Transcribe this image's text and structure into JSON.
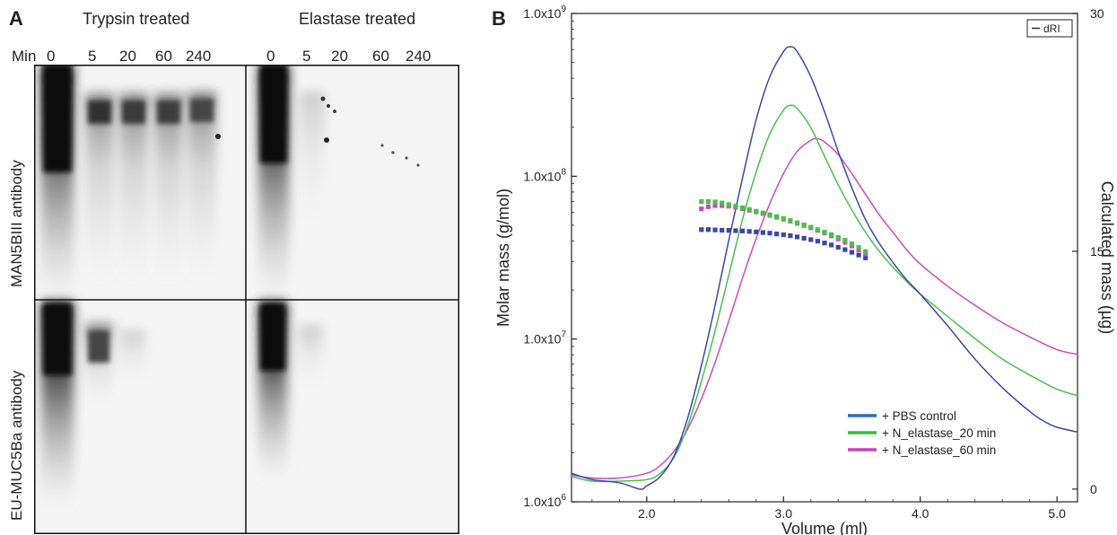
{
  "panel_a": {
    "letter": "A",
    "headers": [
      "Trypsin treated",
      "Elastase treated"
    ],
    "min_label": "Min",
    "lanes_left": [
      "0",
      "5",
      "20",
      "60",
      "240"
    ],
    "lanes_right": [
      "0",
      "5",
      "20",
      "60",
      "240"
    ],
    "antibodies": [
      "MAN5BIII antibody",
      "EU-MUC5Ba antibody"
    ]
  },
  "panel_b": {
    "letter": "B"
  },
  "chart_data": {
    "type": "line",
    "title": "",
    "xlabel": "Volume (ml)",
    "ylabel": "Molar mass (g/mol)",
    "ylabel_right": "Calculated mass (µg)",
    "xlim": [
      1.45,
      5.15
    ],
    "ylim": [
      1000000,
      1000000000
    ],
    "yscale": "log",
    "ylim_right": [
      -0.8,
      30
    ],
    "x_ticks": [
      "2.0",
      "3.0",
      "4.0",
      "5.0"
    ],
    "x_tick_values": [
      2.0,
      3.0,
      4.0,
      5.0
    ],
    "y_ticks": [
      "1.0x10^6",
      "1.0x10^7",
      "1.0x10^8",
      "1.0x10^9"
    ],
    "y_tick_values": [
      1000000,
      10000000,
      100000000,
      1000000000
    ],
    "y_right_ticks": [
      "0",
      "15",
      "30"
    ],
    "y_right_tick_values": [
      0,
      15,
      30
    ],
    "inset_legend": "dRI",
    "legend_position": "bottom-right",
    "series": [
      {
        "name": "+ PBS control",
        "color": "#3d47a8",
        "legend_color": "#2a6db5",
        "curve": {
          "x": [
            1.45,
            1.6,
            1.8,
            1.95,
            2.0,
            2.1,
            2.2,
            2.3,
            2.4,
            2.5,
            2.6,
            2.7,
            2.8,
            2.9,
            3.0,
            3.05,
            3.1,
            3.2,
            3.3,
            3.4,
            3.5,
            3.6,
            3.7,
            3.8,
            3.9,
            4.0,
            4.2,
            4.4,
            4.6,
            4.8,
            4.9,
            5.0,
            5.15
          ],
          "y": [
            1.0,
            0.6,
            0.4,
            0.0,
            0.2,
            0.8,
            2.1,
            4.5,
            7.8,
            11.6,
            15.7,
            19.6,
            23.3,
            26.0,
            27.6,
            27.9,
            27.6,
            26.0,
            23.8,
            21.3,
            19.0,
            17.0,
            15.5,
            14.3,
            13.2,
            12.3,
            10.3,
            8.2,
            6.4,
            4.9,
            4.3,
            3.9,
            3.6
          ]
        },
        "mass": {
          "x": [
            2.4,
            2.45,
            2.5,
            2.55,
            2.6,
            2.65,
            2.7,
            2.75,
            2.8,
            2.85,
            2.9,
            2.95,
            3.0,
            3.05,
            3.1,
            3.15,
            3.2,
            3.25,
            3.3,
            3.35,
            3.4,
            3.45,
            3.5,
            3.55,
            3.6
          ],
          "y": [
            47000000,
            47000000,
            46800000,
            46600000,
            46500000,
            46300000,
            46100000,
            45800000,
            45500000,
            45100000,
            44700000,
            44200000,
            43700000,
            43100000,
            42400000,
            41600000,
            40800000,
            39900000,
            38900000,
            37800000,
            36600000,
            35400000,
            34100000,
            32800000,
            31500000
          ]
        }
      },
      {
        "name": "+ N_elastase_20 min",
        "color": "#4cbf4c",
        "legend_color": "#3fb83f",
        "curve": {
          "x": [
            1.45,
            1.6,
            1.8,
            2.0,
            2.1,
            2.2,
            2.3,
            2.4,
            2.5,
            2.6,
            2.7,
            2.8,
            2.9,
            3.0,
            3.05,
            3.1,
            3.2,
            3.3,
            3.4,
            3.5,
            3.6,
            3.7,
            3.8,
            3.9,
            4.0,
            4.2,
            4.4,
            4.6,
            4.8,
            5.0,
            5.15
          ],
          "y": [
            0.8,
            0.5,
            0.5,
            0.6,
            1.0,
            2.0,
            4.0,
            6.8,
            10.0,
            13.5,
            17.0,
            20.0,
            22.4,
            23.9,
            24.2,
            24.0,
            22.8,
            21.0,
            19.2,
            17.6,
            16.2,
            15.0,
            14.0,
            13.1,
            12.3,
            10.9,
            9.5,
            8.2,
            7.2,
            6.3,
            5.9
          ]
        },
        "mass": {
          "x": [
            2.4,
            2.45,
            2.5,
            2.55,
            2.6,
            2.65,
            2.7,
            2.75,
            2.8,
            2.85,
            2.9,
            2.95,
            3.0,
            3.05,
            3.1,
            3.15,
            3.2,
            3.25,
            3.3,
            3.35,
            3.4,
            3.45,
            3.5,
            3.55,
            3.6
          ],
          "y": [
            70000000,
            70000000,
            69500000,
            68500000,
            67000000,
            65500000,
            64000000,
            62500000,
            61000000,
            59500000,
            58000000,
            56500000,
            55000000,
            53400000,
            51800000,
            50200000,
            48600000,
            47000000,
            45400000,
            43800000,
            42100000,
            40400000,
            38500000,
            36500000,
            34500000
          ]
        }
      },
      {
        "name": "+ N_elastase_60 min",
        "color": "#c74cc2",
        "legend_color": "#c93ec2",
        "curve": {
          "x": [
            1.45,
            1.6,
            1.8,
            2.0,
            2.1,
            2.2,
            2.3,
            2.4,
            2.5,
            2.6,
            2.7,
            2.8,
            2.9,
            3.0,
            3.1,
            3.2,
            3.25,
            3.3,
            3.4,
            3.5,
            3.6,
            3.7,
            3.8,
            3.9,
            4.0,
            4.2,
            4.4,
            4.6,
            4.8,
            5.0,
            5.15
          ],
          "y": [
            0.9,
            0.7,
            0.7,
            1.0,
            1.5,
            2.4,
            3.8,
            5.7,
            8.0,
            10.6,
            13.3,
            15.8,
            18.0,
            19.9,
            21.3,
            22.0,
            22.1,
            21.9,
            21.1,
            19.9,
            18.6,
            17.3,
            16.2,
            15.1,
            14.2,
            12.8,
            11.6,
            10.5,
            9.6,
            8.8,
            8.5
          ]
        },
        "mass": {
          "x": [
            2.4,
            2.45,
            2.5,
            2.55,
            2.6,
            2.65,
            2.7,
            2.75,
            2.8,
            2.85,
            2.9,
            2.95,
            3.0,
            3.05,
            3.1,
            3.15,
            3.2,
            3.25,
            3.3,
            3.35,
            3.4,
            3.45,
            3.5,
            3.55,
            3.6
          ],
          "y": [
            63000000,
            65000000,
            66000000,
            66000000,
            65500000,
            64500000,
            63200000,
            61800000,
            60400000,
            59000000,
            57500000,
            56000000,
            54500000,
            53000000,
            51400000,
            49800000,
            48200000,
            46500000,
            44800000,
            43000000,
            41200000,
            39300000,
            37300000,
            35300000,
            33300000
          ]
        }
      }
    ]
  }
}
